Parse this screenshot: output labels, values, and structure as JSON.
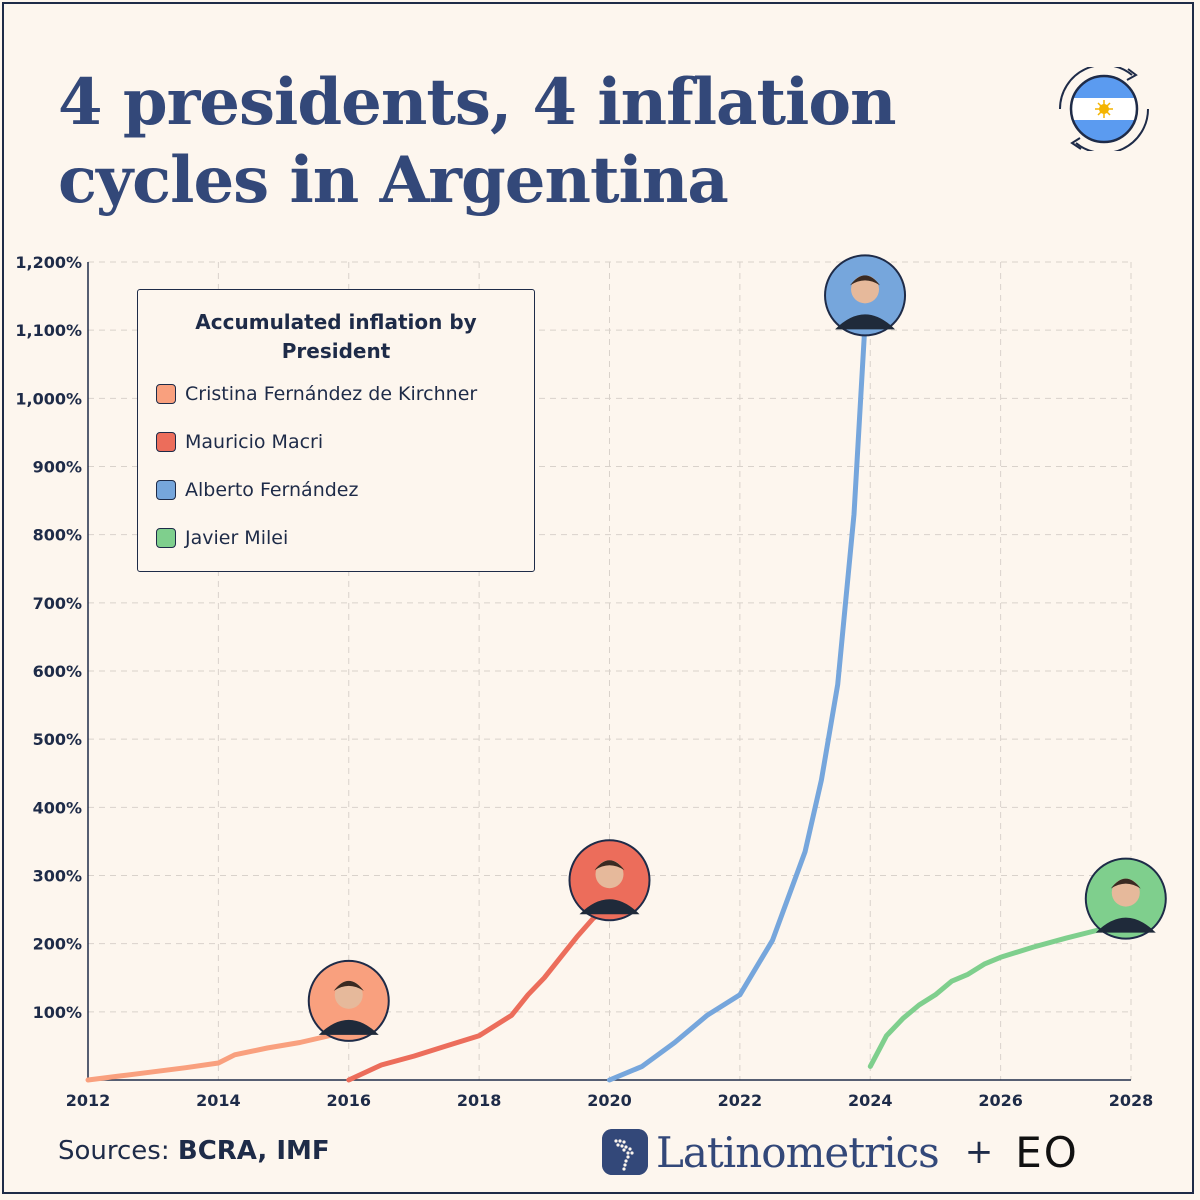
{
  "title_lines": [
    "4 presidents, 4 inflation",
    "cycles in Argentina"
  ],
  "icons": {
    "flag": "argentina-flag-icon",
    "brand": "latinometrics-map-icon"
  },
  "colors": {
    "text": "#1e2b48",
    "title": "#334879",
    "background": "#fdf6ee",
    "grid": "#d9d2cb"
  },
  "footer": {
    "source_prefix": "Sources:",
    "source_names": "BCRA, IMF",
    "brand": "Latinometrics",
    "plus": "+",
    "partner": "EO"
  },
  "chart_data": {
    "type": "line",
    "title": "",
    "legend_title": "Accumulated inflation by President",
    "legend_title_lines": [
      "Accumulated inflation by",
      "President"
    ],
    "legend_position": "top-left",
    "grid": true,
    "xlim": [
      2012,
      2028
    ],
    "ylim": [
      0,
      1200
    ],
    "x_ticks": [
      2012,
      2014,
      2016,
      2018,
      2020,
      2022,
      2024,
      2026,
      2028
    ],
    "y_ticks": [
      100,
      200,
      300,
      400,
      500,
      600,
      700,
      800,
      900,
      1000,
      1100,
      1200
    ],
    "y_tick_labels": [
      "100%",
      "200%",
      "300%",
      "400%",
      "500%",
      "600%",
      "700%",
      "800%",
      "900%",
      "1,000%",
      "1,100%",
      "1,200%"
    ],
    "series": [
      {
        "name": "Cristina Fernández de Kirchner",
        "color": "#f9a07e",
        "x": [
          2012.0,
          2012.5,
          2013.0,
          2013.5,
          2014.0,
          2014.25,
          2014.75,
          2015.25,
          2015.75,
          2016.0
        ],
        "y": [
          0,
          6,
          12,
          18,
          25,
          37,
          47,
          55,
          66,
          75
        ]
      },
      {
        "name": "Mauricio Macri",
        "color": "#ec6d5b",
        "x": [
          2016.0,
          2016.5,
          2017.0,
          2017.5,
          2018.0,
          2018.5,
          2018.75,
          2019.0,
          2019.25,
          2019.5,
          2019.75,
          2020.0
        ],
        "y": [
          0,
          22,
          35,
          50,
          65,
          95,
          125,
          150,
          180,
          210,
          237,
          252
        ]
      },
      {
        "name": "Alberto Fernández",
        "color": "#76a6dc",
        "x": [
          2020.0,
          2020.5,
          2021.0,
          2021.5,
          2022.0,
          2022.5,
          2023.0,
          2023.25,
          2023.5,
          2023.75,
          2023.92
        ],
        "y": [
          0,
          20,
          55,
          95,
          125,
          205,
          335,
          440,
          580,
          830,
          1110
        ]
      },
      {
        "name": "Javier Milei",
        "color": "#7fcf8d",
        "x": [
          2024.0,
          2024.25,
          2024.5,
          2024.75,
          2025.0,
          2025.25,
          2025.5,
          2025.75,
          2026.0,
          2026.5,
          2027.0,
          2027.5,
          2027.92
        ],
        "y": [
          20,
          65,
          90,
          110,
          125,
          145,
          155,
          170,
          180,
          195,
          208,
          220,
          225
        ]
      }
    ],
    "portraits": [
      {
        "series": "Cristina Fernández de Kirchner",
        "x": 2016.0,
        "y": 75,
        "icon": "cristina-kirchner-portrait-icon"
      },
      {
        "series": "Mauricio Macri",
        "x": 2020.0,
        "y": 252,
        "icon": "mauricio-macri-portrait-icon"
      },
      {
        "series": "Alberto Fernández",
        "x": 2023.92,
        "y": 1110,
        "icon": "alberto-fernandez-portrait-icon"
      },
      {
        "series": "Javier Milei",
        "x": 2027.92,
        "y": 225,
        "icon": "javier-milei-portrait-icon"
      }
    ]
  }
}
